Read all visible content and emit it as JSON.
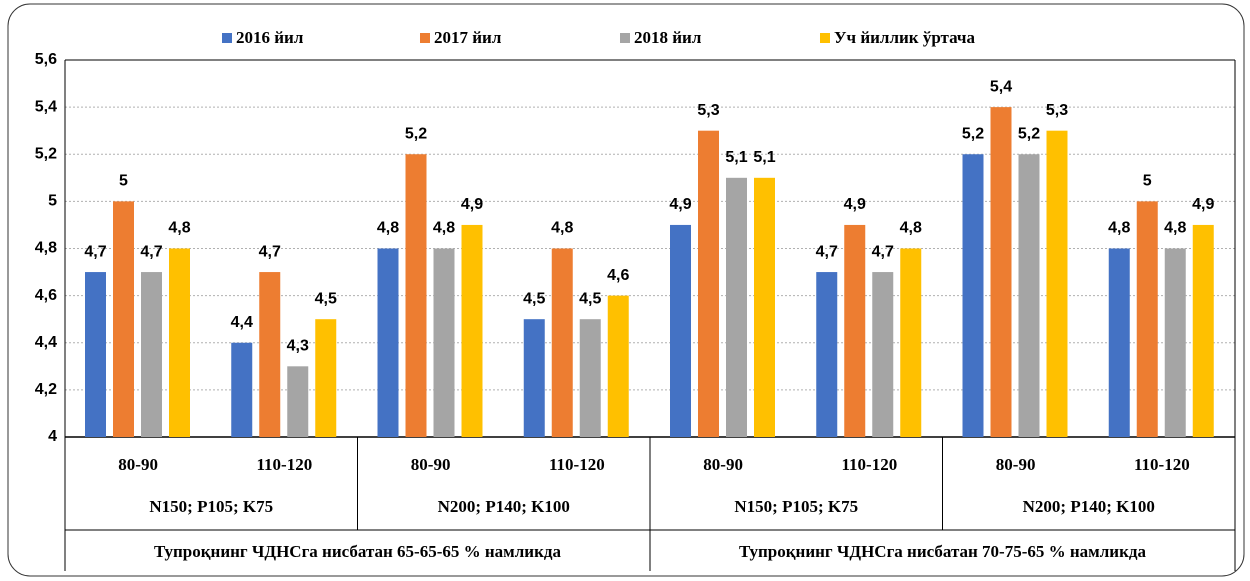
{
  "chart_data": {
    "type": "bar",
    "categories": [
      "80-90",
      "110-120",
      "80-90",
      "110-120",
      "80-90",
      "110-120",
      "80-90",
      "110-120"
    ],
    "groups": [
      "N150; P105; K75",
      "N200; P140; K100",
      "N150; P105; K75",
      "N200; P140; K100"
    ],
    "supergroups": [
      "Тупроқнинг ЧДНСга нисбатан 65-65-65 % намликда",
      "Тупроқнинг ЧДНСга нисбатан 70-75-65 % намликда"
    ],
    "series": [
      {
        "name": "2016 йил",
        "color": "#4472c4",
        "values": [
          4.7,
          4.4,
          4.8,
          4.5,
          4.9,
          4.7,
          5.2,
          4.8
        ],
        "value_labels": [
          "4,7",
          "4,4",
          "4,8",
          "4,5",
          "4,9",
          "4,7",
          "5,2",
          "4,8"
        ]
      },
      {
        "name": "2017 йил",
        "color": "#ed7d31",
        "values": [
          5,
          4.7,
          5.2,
          4.8,
          5.3,
          4.9,
          5.4,
          5
        ],
        "value_labels": [
          "5",
          "4,7",
          "5,2",
          "4,8",
          "5,3",
          "4,9",
          "5,4",
          "5"
        ]
      },
      {
        "name": "2018 йил",
        "color": "#a5a5a5",
        "values": [
          4.7,
          4.3,
          4.8,
          4.5,
          5.1,
          4.7,
          5.2,
          4.8
        ],
        "value_labels": [
          "4,7",
          "4,3",
          "4,8",
          "4,5",
          "5,1",
          "4,7",
          "5,2",
          "4,8"
        ]
      },
      {
        "name": "Уч йиллик ўртача",
        "color": "#ffc000",
        "values": [
          4.8,
          4.5,
          4.9,
          4.6,
          5.1,
          4.8,
          5.3,
          4.9
        ],
        "value_labels": [
          "4,8",
          "4,5",
          "4,9",
          "4,6",
          "5,1",
          "4,8",
          "5,3",
          "4,9"
        ]
      }
    ],
    "ylim": [
      4,
      5.6
    ],
    "yticks": [
      4,
      {
        "value": 4.2,
        "label": "4,2"
      },
      {
        "value": 4.4,
        "label": "4,4"
      },
      {
        "value": 4.6,
        "label": "4,6"
      },
      {
        "value": 4.8,
        "label": "4,8"
      },
      5,
      {
        "value": 5.2,
        "label": "5,2"
      },
      {
        "value": 5.4,
        "label": "5,4"
      },
      {
        "value": 5.6,
        "label": "5,6"
      }
    ],
    "grid": true,
    "legend": "top"
  }
}
